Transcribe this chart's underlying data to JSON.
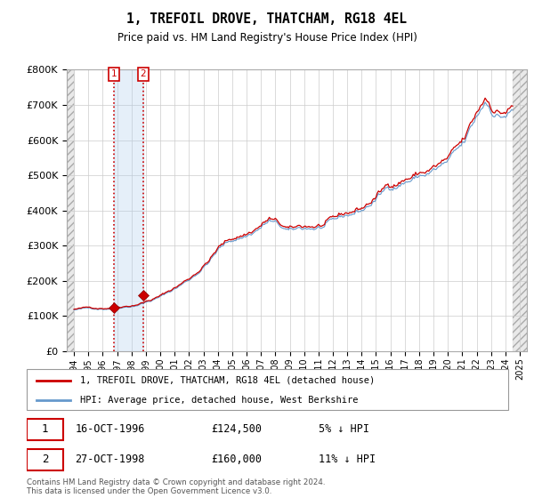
{
  "title": "1, TREFOIL DROVE, THATCHAM, RG18 4EL",
  "subtitle": "Price paid vs. HM Land Registry's House Price Index (HPI)",
  "hpi_color": "#6699cc",
  "price_color": "#cc0000",
  "annotation_box_color": "#cc0000",
  "sale1": {
    "date": 1996.79,
    "price": 124500,
    "label": "1"
  },
  "sale2": {
    "date": 1998.82,
    "price": 160000,
    "label": "2"
  },
  "ylim": [
    0,
    800000
  ],
  "yticks": [
    0,
    100000,
    200000,
    300000,
    400000,
    500000,
    600000,
    700000,
    800000
  ],
  "xlim_start": 1993.5,
  "xlim_end": 2025.5,
  "legend_label_price": "1, TREFOIL DROVE, THATCHAM, RG18 4EL (detached house)",
  "legend_label_hpi": "HPI: Average price, detached house, West Berkshire",
  "footer": "Contains HM Land Registry data © Crown copyright and database right 2024.\nThis data is licensed under the Open Government Licence v3.0."
}
